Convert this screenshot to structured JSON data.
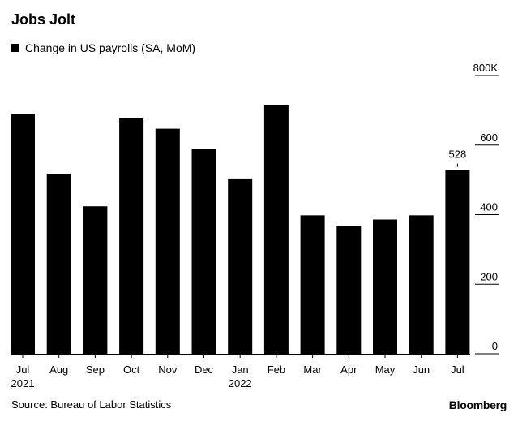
{
  "header": {
    "title": "Jobs Jolt",
    "legend_label": "Change in US payrolls (SA, MoM)"
  },
  "footer": {
    "source": "Source: Bureau of Labor Statistics",
    "brand": "Bloomberg"
  },
  "colors": {
    "bar": "#000000",
    "background": "#ffffff"
  },
  "chart_data": {
    "type": "bar",
    "title": "Jobs Jolt",
    "series": [
      {
        "name": "Change in US payrolls (SA, MoM)",
        "values": [
          689,
          517,
          424,
          677,
          647,
          588,
          504,
          714,
          398,
          368,
          386,
          398,
          528
        ]
      }
    ],
    "categories": [
      "Jul",
      "Aug",
      "Sep",
      "Oct",
      "Nov",
      "Dec",
      "Jan",
      "Feb",
      "Mar",
      "Apr",
      "May",
      "Jun",
      "Jul"
    ],
    "year_labels": [
      {
        "index": 0,
        "label": "2021"
      },
      {
        "index": 6,
        "label": "2022"
      }
    ],
    "yticks": [
      0,
      200,
      400,
      600,
      800
    ],
    "ytick_labels": [
      "0",
      "200",
      "400",
      "600",
      "800K"
    ],
    "ylim": [
      0,
      800
    ],
    "y_axis_side": "right",
    "annotations": [
      {
        "index": 12,
        "label": "528"
      }
    ],
    "xlabel": "",
    "ylabel": ""
  }
}
